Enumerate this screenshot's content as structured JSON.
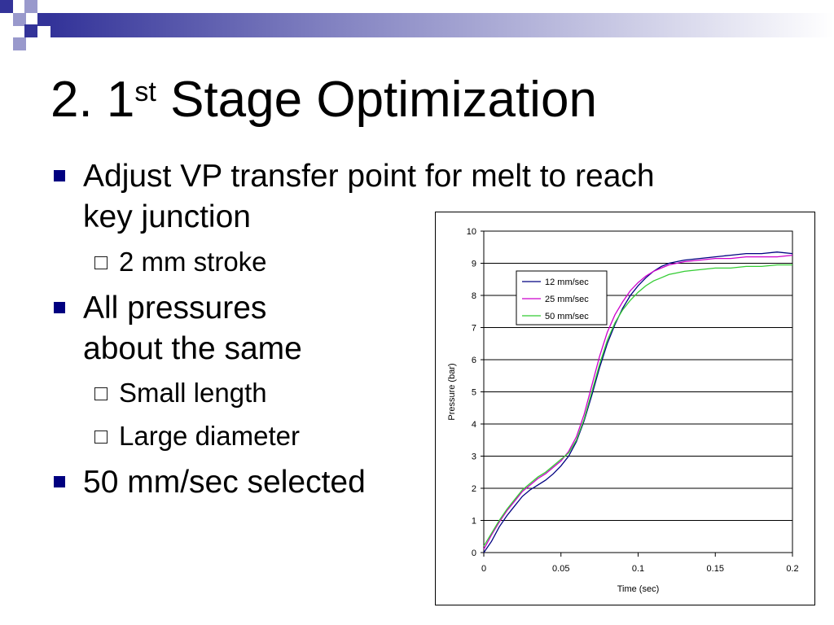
{
  "slide": {
    "title_main": "2. 1",
    "title_sup": "st",
    "title_rest": " Stage Optimization",
    "bullets": {
      "b1_line1": "Adjust VP transfer point for melt to reach",
      "b1_line2": "key junction",
      "b1_sub1": "2 mm stroke",
      "b2_line1": "All pressures",
      "b2_line2": "about the same",
      "b2_sub1": "Small length",
      "b2_sub2": "Large diameter",
      "b3_line1": "50 mm/sec selected"
    },
    "colors": {
      "bullet": "#000080",
      "deco_dark": "#333399",
      "deco_light": "#9999cc"
    }
  },
  "chart_data": {
    "type": "line",
    "xlabel": "Time (sec)",
    "ylabel": "Pressure (bar)",
    "xlim": [
      0,
      0.2
    ],
    "ylim": [
      0,
      10
    ],
    "xticks": [
      0,
      0.05,
      0.1,
      0.15,
      0.2
    ],
    "xtick_labels": [
      "0",
      "0.05",
      "0.1",
      "0.15",
      "0.2"
    ],
    "yticks": [
      0,
      1,
      2,
      3,
      4,
      5,
      6,
      7,
      8,
      9,
      10
    ],
    "ytick_labels": [
      "0",
      "1",
      "2",
      "3",
      "4",
      "5",
      "6",
      "7",
      "8",
      "9",
      "10"
    ],
    "grid": "horizontal",
    "legend": "upper-left inside plot",
    "series": [
      {
        "name": "12 mm/sec",
        "color": "#000080",
        "x": [
          0,
          0.005,
          0.01,
          0.015,
          0.02,
          0.025,
          0.03,
          0.035,
          0.04,
          0.045,
          0.05,
          0.055,
          0.06,
          0.065,
          0.07,
          0.075,
          0.08,
          0.085,
          0.09,
          0.095,
          0.1,
          0.105,
          0.11,
          0.115,
          0.12,
          0.125,
          0.13,
          0.14,
          0.15,
          0.16,
          0.17,
          0.18,
          0.19,
          0.2
        ],
        "y": [
          0,
          0.35,
          0.8,
          1.15,
          1.45,
          1.75,
          1.95,
          2.1,
          2.25,
          2.45,
          2.7,
          3.0,
          3.45,
          4.1,
          4.9,
          5.75,
          6.5,
          7.1,
          7.6,
          8.0,
          8.3,
          8.55,
          8.75,
          8.9,
          9.0,
          9.05,
          9.1,
          9.15,
          9.2,
          9.25,
          9.3,
          9.3,
          9.35,
          9.3
        ]
      },
      {
        "name": "25 mm/sec",
        "color": "#cc00cc",
        "x": [
          0,
          0.005,
          0.01,
          0.015,
          0.02,
          0.025,
          0.03,
          0.035,
          0.04,
          0.045,
          0.05,
          0.055,
          0.06,
          0.065,
          0.07,
          0.075,
          0.08,
          0.085,
          0.09,
          0.095,
          0.1,
          0.105,
          0.11,
          0.115,
          0.12,
          0.125,
          0.13,
          0.14,
          0.15,
          0.16,
          0.17,
          0.18,
          0.19,
          0.2
        ],
        "y": [
          0.1,
          0.55,
          0.95,
          1.3,
          1.6,
          1.9,
          2.1,
          2.3,
          2.45,
          2.65,
          2.85,
          3.15,
          3.6,
          4.3,
          5.2,
          6.1,
          6.85,
          7.4,
          7.8,
          8.15,
          8.4,
          8.6,
          8.75,
          8.85,
          8.95,
          9.0,
          9.05,
          9.1,
          9.15,
          9.15,
          9.2,
          9.2,
          9.2,
          9.25
        ]
      },
      {
        "name": "50 mm/sec",
        "color": "#33cc33",
        "x": [
          0,
          0.005,
          0.01,
          0.015,
          0.02,
          0.025,
          0.03,
          0.035,
          0.04,
          0.045,
          0.05,
          0.055,
          0.06,
          0.065,
          0.07,
          0.075,
          0.08,
          0.085,
          0.09,
          0.095,
          0.1,
          0.105,
          0.11,
          0.115,
          0.12,
          0.125,
          0.13,
          0.14,
          0.15,
          0.16,
          0.17,
          0.18,
          0.19,
          0.2
        ],
        "y": [
          0.2,
          0.6,
          1.0,
          1.35,
          1.65,
          1.95,
          2.15,
          2.35,
          2.5,
          2.7,
          2.9,
          3.1,
          3.5,
          4.15,
          5.0,
          5.85,
          6.6,
          7.15,
          7.55,
          7.85,
          8.1,
          8.3,
          8.45,
          8.55,
          8.65,
          8.7,
          8.75,
          8.8,
          8.85,
          8.85,
          8.9,
          8.9,
          8.95,
          8.95
        ]
      }
    ]
  }
}
